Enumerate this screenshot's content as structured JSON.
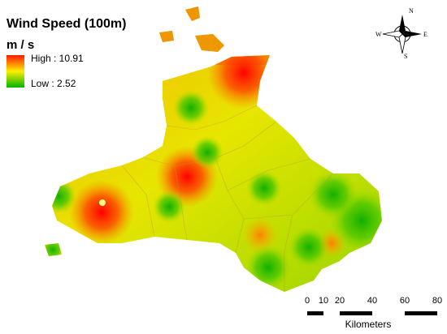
{
  "title": "Wind Speed (100m)",
  "legend": {
    "unit": "m / s",
    "high": "High : 10.91",
    "low": "Low : 2.52"
  },
  "compass": {
    "n": "N",
    "e": "E",
    "s": "S",
    "w": "W"
  },
  "scale_bar": {
    "ticks": [
      0,
      10,
      20,
      40,
      60,
      80
    ],
    "unit": "Kilometers"
  }
}
